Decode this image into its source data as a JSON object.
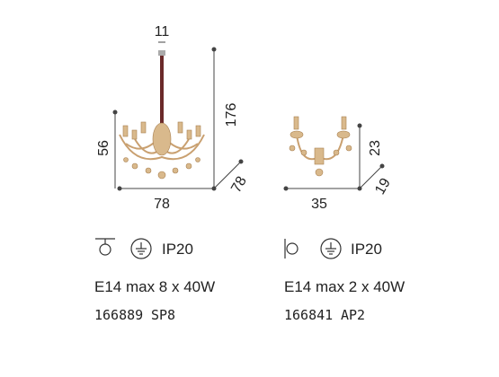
{
  "products": [
    {
      "dimensions": {
        "top": "11",
        "height": "176",
        "body_height": "56",
        "width": "78",
        "depth": "78"
      },
      "protection": "IP20",
      "lamp": "E14 max 8 x 40W",
      "code": "166889",
      "model": "SP8"
    },
    {
      "dimensions": {
        "height": "23",
        "width": "35",
        "depth": "19"
      },
      "protection": "IP20",
      "lamp": "E14 max 2 x 40W",
      "code": "166841",
      "model": "AP2"
    }
  ]
}
